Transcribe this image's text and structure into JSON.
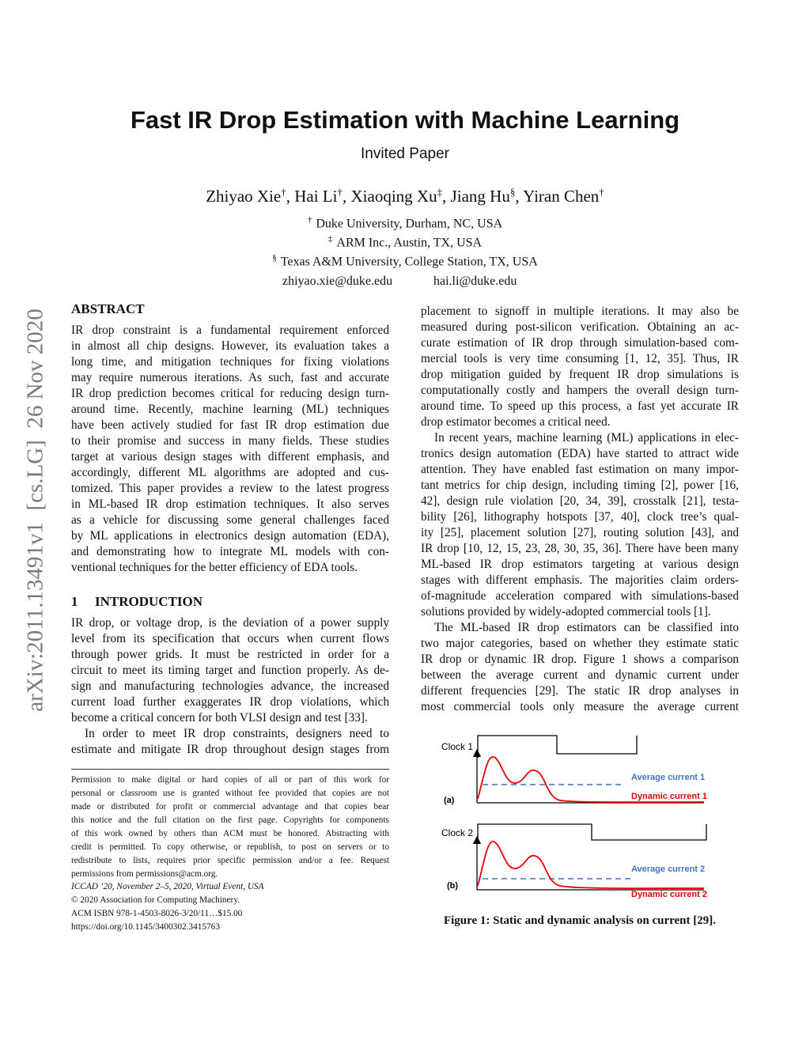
{
  "header": {
    "title": "Fast IR Drop Estimation with Machine Learning",
    "subtitle": "Invited Paper"
  },
  "authors": [
    {
      "name": "Zhiyao Xie",
      "mark": "†"
    },
    {
      "name": "Hai Li",
      "mark": "†"
    },
    {
      "name": "Xiaoqing Xu",
      "mark": "‡"
    },
    {
      "name": "Jiang Hu",
      "mark": "§"
    },
    {
      "name": "Yiran Chen",
      "mark": "†"
    }
  ],
  "author_separator": ", ",
  "affiliations": [
    {
      "mark": "†",
      "text": "Duke University, Durham, NC, USA"
    },
    {
      "mark": "‡",
      "text": "ARM Inc., Austin, TX, USA"
    },
    {
      "mark": "§",
      "text": "Texas A&M University, College Station, TX, USA"
    }
  ],
  "emails": [
    "zhiyao.xie@duke.edu",
    "hai.li@duke.edu"
  ],
  "arxiv_stamp": "arXiv:2011.13491v1  [cs.LG]  26 Nov 2020",
  "abstract": {
    "heading": "ABSTRACT",
    "lines": [
      "IR drop constraint is a fundamental requirement enforced",
      "in almost all chip designs. However, its evaluation takes a",
      "long time, and mitigation techniques for fixing violations",
      "may require numerous iterations. As such, fast and accurate",
      "IR drop prediction becomes critical for reducing design turn-",
      "around time. Recently, machine learning (ML) techniques",
      "have been actively studied for fast IR drop estimation due",
      "to their promise and success in many fields. These studies",
      "target at various design stages with different emphasis, and",
      "accordingly, different ML algorithms are adopted and cus-",
      "tomized. This paper provides a review to the latest progress",
      "in ML-based IR drop estimation techniques. It also serves",
      "as a vehicle for discussing some general challenges faced",
      "by ML applications in electronics design automation (EDA),",
      "and demonstrating how to integrate ML models with con-",
      "ventional techniques for the better efficiency of EDA tools."
    ]
  },
  "introduction": {
    "number": "1",
    "heading": "INTRODUCTION",
    "paragraphs": [
      [
        "IR drop, or voltage drop, is the deviation of a power supply",
        "level from its specification that occurs when current flows",
        "through power grids. It must be restricted in order for a",
        "circuit to meet its timing target and function properly. As de-",
        "sign and manufacturing technologies advance, the increased",
        "current load further exaggerates IR drop violations, which",
        "become a critical concern for both VLSI design and test [33]."
      ],
      [
        "In order to meet IR drop constraints, designers need to",
        "estimate and mitigate IR drop throughout design stages from"
      ]
    ]
  },
  "right_column": {
    "paragraphs": [
      [
        "placement to signoff in multiple iterations. It may also be",
        "measured during post-silicon verification. Obtaining an ac-",
        "curate estimation of IR drop through simulation-based com-",
        "mercial tools is very time consuming [1, 12, 35]. Thus, IR",
        "drop mitigation guided by frequent IR drop simulations is",
        "computationally costly and hampers the overall design turn-",
        "around time. To speed up this process, a fast yet accurate IR",
        "drop estimator becomes a critical need."
      ],
      [
        "In recent years, machine learning (ML) applications in elec-",
        "tronics design automation (EDA) have started to attract wide",
        "attention. They have enabled fast estimation on many impor-",
        "tant metrics for chip design, including timing [2], power [16,",
        "42], design rule violation [20, 34, 39], crosstalk [21], testa-",
        "bility [26], lithography hotspots [37, 40], clock tree’s qual-",
        "ity [25], placement solution [27], routing solution [43], and",
        "IR drop [10, 12, 15, 23, 28, 30, 35, 36]. There have been many",
        "ML-based IR drop estimators targeting at various design",
        "stages with different emphasis. The majorities claim orders-",
        "of-magnitude acceleration compared with simulations-based",
        "solutions provided by widely-adopted commercial tools [1]."
      ],
      [
        "The ML-based IR drop estimators can be classified into",
        "two major categories, based on whether they estimate static",
        "IR drop or dynamic IR drop. Figure 1 shows a comparison",
        "between the average current and dynamic current under",
        "different frequencies [29]. The static IR drop analyses in",
        "most commercial tools only measure the average current"
      ]
    ]
  },
  "footnote": {
    "permission": [
      "Permission to make digital or hard copies of all or part of this work for",
      "personal or classroom use is granted without fee provided that copies are not",
      "made or distributed for profit or commercial advantage and that copies bear",
      "this notice and the full citation on the first page. Copyrights for components",
      "of this work owned by others than ACM must be honored. Abstracting with",
      "credit is permitted. To copy otherwise, or republish, to post on servers or to",
      "redistribute to lists, requires prior specific permission and/or a fee. Request",
      "permissions from permissions@acm.org."
    ],
    "venue": "ICCAD ’20, November 2–5, 2020, Virtual Event, USA",
    "copyright": "© 2020 Association for Computing Machinery.",
    "isbn": "ACM ISBN 978-1-4503-8026-3/20/11…$15.00",
    "doi": "https://doi.org/10.1145/3400302.3415763"
  },
  "figure": {
    "clock_a": "Clock 1",
    "panel_a": "(a)",
    "average_a": "Average current 1",
    "dynamic_a": "Dynamic current 1",
    "clock_b": "Clock 2",
    "panel_b": "(b)",
    "average_b": "Average current 2",
    "dynamic_b": "Dynamic current 2",
    "caption": "Figure 1: Static and dynamic analysis on current [29]."
  }
}
